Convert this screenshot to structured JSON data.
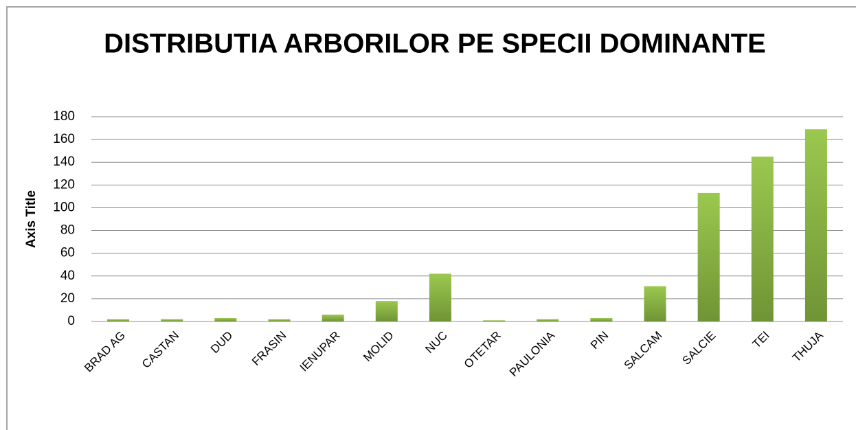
{
  "chart_data": {
    "type": "bar",
    "title": "DISTRIBUTIA ARBORILOR PE SPECII DOMINANTE",
    "y_label": "Axis Title",
    "categories": [
      "BRAD AG",
      "CASTAN",
      "DUD",
      "FRASIN",
      "IENUPAR",
      "MOLID",
      "NUC",
      "OTETAR",
      "PAULONIA",
      "PIN",
      "SALCAM",
      "SALCIE",
      "TEI",
      "THUJA"
    ],
    "values": [
      2,
      2,
      3,
      2,
      6,
      18,
      42,
      1,
      2,
      3,
      31,
      113,
      145,
      169
    ],
    "color": "#8db64a",
    "ylim": [
      0,
      180
    ],
    "yticks": [
      0,
      20,
      40,
      60,
      80,
      100,
      120,
      140,
      160,
      180
    ],
    "grid": true
  }
}
